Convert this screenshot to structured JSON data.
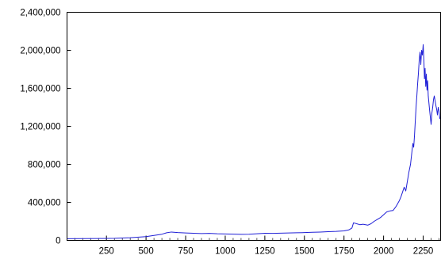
{
  "chart_data": {
    "type": "line",
    "title": "",
    "xlabel": "",
    "ylabel": "",
    "xlim": [
      1,
      2360
    ],
    "ylim": [
      0,
      2400000
    ],
    "x_ticks": [
      250,
      500,
      750,
      1000,
      1250,
      1500,
      1750,
      2000,
      2250
    ],
    "x_tick_labels": [
      "250",
      "500",
      "750",
      "1000",
      "1250",
      "1500",
      "1750",
      "2000",
      "2250"
    ],
    "y_ticks": [
      0,
      400000,
      800000,
      1200000,
      1600000,
      2000000,
      2400000
    ],
    "y_tick_labels": [
      "0",
      "400,000",
      "800,000",
      "1,200,000",
      "1,600,000",
      "2,000,000",
      "2,400,000"
    ],
    "grid": false,
    "legend": "none",
    "line_color": "#1f1fd6",
    "series": [
      {
        "x": [
          1,
          100,
          200,
          300,
          400,
          500,
          550,
          600,
          630,
          660,
          700,
          750,
          800,
          850,
          900,
          950,
          1000,
          1050,
          1100,
          1150,
          1200,
          1250,
          1300,
          1350,
          1400,
          1450,
          1500,
          1550,
          1600,
          1650,
          1700,
          1750,
          1780,
          1800,
          1810,
          1830,
          1850,
          1870,
          1900,
          1920,
          1940,
          1960,
          1980,
          2000,
          2020,
          2040,
          2060,
          2080,
          2100,
          2110,
          2120,
          2130,
          2140,
          2150,
          2160,
          2170,
          2180,
          2185,
          2190,
          2195,
          2200,
          2205,
          2210,
          2215,
          2220,
          2225,
          2230,
          2235,
          2240,
          2245,
          2250,
          2255,
          2258,
          2262,
          2266,
          2270,
          2274,
          2278,
          2282,
          2286,
          2290,
          2295,
          2300,
          2305,
          2310,
          2315,
          2320,
          2325,
          2330,
          2335,
          2340,
          2345,
          2350,
          2355,
          2360
        ],
        "values": [
          18000,
          19000,
          20000,
          22000,
          28000,
          40000,
          52000,
          65000,
          80000,
          88000,
          82000,
          78000,
          75000,
          72000,
          74000,
          70000,
          68000,
          66000,
          64000,
          65000,
          70000,
          75000,
          74000,
          76000,
          78000,
          80000,
          82000,
          85000,
          88000,
          92000,
          95000,
          100000,
          110000,
          130000,
          185000,
          175000,
          165000,
          170000,
          160000,
          175000,
          200000,
          220000,
          240000,
          270000,
          300000,
          310000,
          315000,
          360000,
          420000,
          460000,
          510000,
          560000,
          520000,
          620000,
          720000,
          800000,
          950000,
          1020000,
          980000,
          1100000,
          1250000,
          1400000,
          1520000,
          1650000,
          1760000,
          1900000,
          1980000,
          1850000,
          2000000,
          1950000,
          2060000,
          1860000,
          1700000,
          1810000,
          1620000,
          1750000,
          1580000,
          1680000,
          1520000,
          1450000,
          1380000,
          1300000,
          1220000,
          1340000,
          1400000,
          1480000,
          1520000,
          1470000,
          1420000,
          1380000,
          1320000,
          1400000,
          1360000,
          1280000,
          1300000
        ]
      }
    ]
  }
}
